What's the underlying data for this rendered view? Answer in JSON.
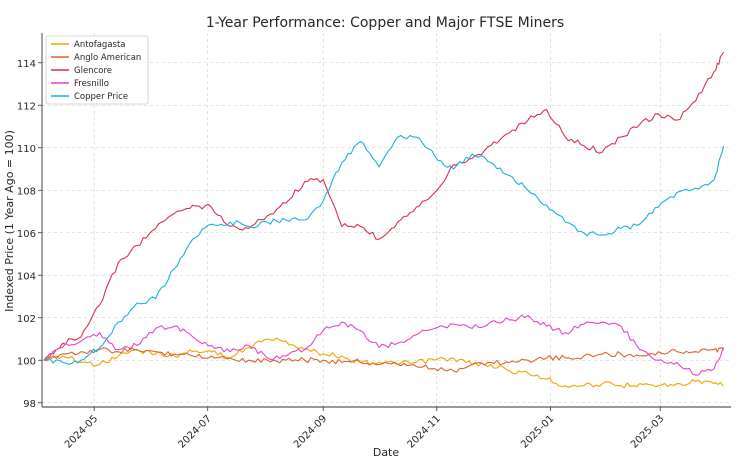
{
  "chart_data": {
    "type": "line",
    "title": "1-Year Performance: Copper and Major FTSE Miners",
    "xlabel": "Date",
    "ylabel": "Indexed Price (1 Year Ago = 100)",
    "xlim": [
      "2024-04-03",
      "2025-04-08"
    ],
    "ylim": [
      97.8,
      115.4
    ],
    "grid": true,
    "legend": "top-left",
    "x_ticks": [
      {
        "date": "2024-05-01",
        "label": "2024-05"
      },
      {
        "date": "2024-07-01",
        "label": "2024-07"
      },
      {
        "date": "2024-09-01",
        "label": "2024-09"
      },
      {
        "date": "2024-11-01",
        "label": "2024-11"
      },
      {
        "date": "2025-01-01",
        "label": "2025-01"
      },
      {
        "date": "2025-03-01",
        "label": "2025-03"
      }
    ],
    "y_ticks": [
      98,
      100,
      102,
      104,
      106,
      108,
      110,
      112,
      114
    ],
    "x": [
      "2024-04-04",
      "2024-04-14",
      "2024-04-24",
      "2024-05-04",
      "2024-05-14",
      "2024-05-24",
      "2024-06-03",
      "2024-06-13",
      "2024-06-23",
      "2024-07-03",
      "2024-07-13",
      "2024-07-23",
      "2024-08-02",
      "2024-08-12",
      "2024-08-22",
      "2024-09-01",
      "2024-09-11",
      "2024-09-21",
      "2024-10-01",
      "2024-10-11",
      "2024-10-21",
      "2024-10-31",
      "2024-11-10",
      "2024-11-20",
      "2024-11-30",
      "2024-12-10",
      "2024-12-20",
      "2024-12-30",
      "2025-01-09",
      "2025-01-19",
      "2025-01-29",
      "2025-02-08",
      "2025-02-18",
      "2025-02-28",
      "2025-03-10",
      "2025-03-20",
      "2025-03-30",
      "2025-04-04"
    ],
    "series": [
      {
        "name": "Antofagasta",
        "color": "#f0a500",
        "values": [
          100.0,
          100.2,
          99.9,
          99.8,
          100.2,
          100.5,
          100.3,
          100.2,
          100.4,
          100.4,
          100.1,
          100.6,
          101.0,
          100.9,
          100.5,
          100.3,
          100.2,
          99.9,
          99.9,
          99.8,
          99.9,
          100.0,
          100.1,
          99.8,
          99.8,
          99.5,
          99.4,
          99.1,
          98.8,
          98.8,
          98.9,
          98.8,
          98.9,
          98.8,
          98.9,
          99.0,
          98.9,
          98.8
        ]
      },
      {
        "name": "Anglo American",
        "color": "#e0622a",
        "values": [
          100.0,
          100.3,
          100.4,
          100.5,
          100.4,
          100.5,
          100.4,
          100.3,
          100.2,
          100.2,
          100.1,
          100.0,
          100.0,
          100.0,
          100.0,
          100.0,
          99.9,
          99.9,
          99.8,
          99.8,
          99.7,
          99.6,
          99.5,
          99.8,
          99.9,
          99.9,
          100.0,
          100.1,
          100.1,
          100.2,
          100.3,
          100.3,
          100.2,
          100.4,
          100.4,
          100.4,
          100.5,
          100.5
        ]
      },
      {
        "name": "Glencore",
        "color": "#d9304f",
        "values": [
          100.0,
          100.8,
          101.1,
          102.6,
          104.6,
          105.4,
          106.2,
          106.9,
          107.3,
          107.2,
          106.3,
          106.2,
          106.8,
          107.4,
          108.4,
          108.5,
          106.3,
          106.3,
          105.7,
          106.5,
          107.2,
          107.9,
          109.2,
          109.5,
          110.1,
          110.7,
          111.3,
          111.8,
          110.5,
          110.1,
          109.8,
          110.5,
          111.1,
          111.6,
          111.3,
          112.2,
          113.6,
          114.5
        ]
      },
      {
        "name": "Fresnillo",
        "color": "#e844c8",
        "values": [
          100.0,
          100.6,
          100.9,
          101.3,
          100.5,
          100.7,
          101.5,
          101.6,
          101.1,
          100.7,
          100.4,
          100.7,
          100.1,
          100.2,
          100.5,
          101.4,
          101.8,
          101.4,
          100.6,
          100.8,
          101.2,
          101.5,
          101.7,
          101.5,
          101.8,
          101.9,
          102.1,
          101.6,
          101.3,
          101.7,
          101.8,
          101.6,
          100.5,
          100.0,
          99.9,
          99.3,
          99.6,
          100.6
        ]
      },
      {
        "name": "Copper Price",
        "color": "#1ab2e0",
        "values": [
          100.0,
          99.9,
          100.0,
          100.6,
          101.8,
          102.7,
          102.9,
          104.3,
          105.7,
          106.4,
          106.5,
          106.3,
          106.5,
          106.6,
          106.6,
          107.5,
          109.3,
          110.3,
          109.1,
          110.5,
          110.5,
          109.6,
          109.0,
          109.7,
          109.3,
          108.7,
          108.0,
          107.3,
          106.5,
          106.0,
          105.9,
          106.2,
          106.4,
          107.2,
          107.9,
          108.1,
          108.5,
          110.1
        ]
      }
    ]
  }
}
